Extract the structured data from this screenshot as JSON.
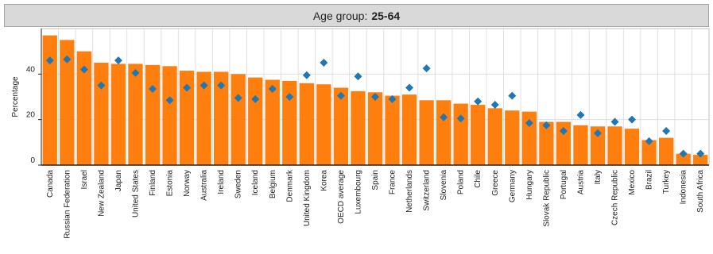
{
  "panel": {
    "label": "Age group:",
    "value": "25-64"
  },
  "chart_data": {
    "type": "bar",
    "ylabel": "Percentage",
    "ylim": [
      0,
      60
    ],
    "yticks": [
      0,
      20,
      40
    ],
    "grid": true,
    "colors": {
      "bar": "#ff7f0e",
      "marker": "#1f77b4"
    },
    "categories": [
      "Canada",
      "Russian Federation",
      "Israel",
      "New Zealand",
      "Japan",
      "United States",
      "Finland",
      "Estonia",
      "Norway",
      "Australia",
      "Ireland",
      "Sweden",
      "Iceland",
      "Belgium",
      "Denmark",
      "United Kingdom",
      "Korea",
      "OECD average",
      "Luxembourg",
      "Spain",
      "France",
      "Netherlands",
      "Switzerland",
      "Slovenia",
      "Poland",
      "Chile",
      "Greece",
      "Germany",
      "Hungary",
      "Slovak Republic",
      "Portugal",
      "Austria",
      "Italy",
      "Czech Republic",
      "Mexico",
      "Brazil",
      "Turkey",
      "Indonesia",
      "South Africa"
    ],
    "series": [
      {
        "type": "bar",
        "values": [
          57,
          55,
          50,
          45,
          44.5,
          44.5,
          44,
          43.5,
          41.5,
          41,
          41,
          40,
          38.5,
          37.5,
          37,
          36,
          35.5,
          34,
          32.5,
          32,
          30.5,
          31,
          28.5,
          28.5,
          27,
          26.5,
          25,
          24,
          23.5,
          19,
          19,
          17.5,
          17,
          17,
          16,
          11,
          12,
          5,
          4.5
        ]
      },
      {
        "type": "scatter",
        "values": [
          46,
          46.5,
          42,
          35,
          46,
          40.5,
          33.5,
          28.5,
          34,
          35,
          35,
          29.5,
          29,
          33.5,
          30,
          39.5,
          45,
          30.5,
          39,
          30,
          29,
          34,
          42.5,
          21,
          20.5,
          28,
          26.5,
          30.5,
          18.5,
          17.5,
          15,
          22,
          14,
          19,
          20,
          10.5,
          15,
          5,
          5
        ]
      }
    ]
  }
}
